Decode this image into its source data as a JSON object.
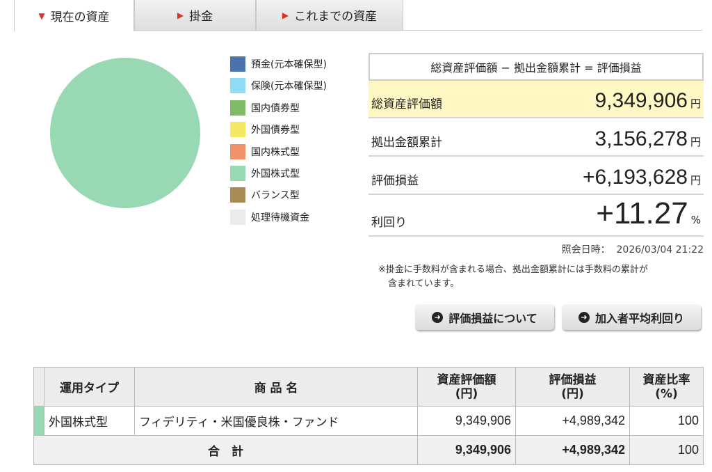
{
  "tabs": [
    {
      "label": "現在の資産",
      "active": true
    },
    {
      "label": "掛金",
      "active": false
    },
    {
      "label": "これまでの資産",
      "active": false
    }
  ],
  "colors": {
    "accent": "#d9302a",
    "highlight": "#fff8c4"
  },
  "chart_data": {
    "type": "pie",
    "slices": [
      {
        "name": "外国株式型",
        "value": 100,
        "color": "#98d9b4"
      }
    ]
  },
  "legend": [
    {
      "label": "預金(元本確保型)",
      "color": "#4a72ad"
    },
    {
      "label": "保険(元本確保型)",
      "color": "#8fdcf6"
    },
    {
      "label": "国内債券型",
      "color": "#7dbb66"
    },
    {
      "label": "外国債券型",
      "color": "#f5e663"
    },
    {
      "label": "国内株式型",
      "color": "#f2906a"
    },
    {
      "label": "外国株式型",
      "color": "#98d9b4"
    },
    {
      "label": "バランス型",
      "color": "#a98c55"
    },
    {
      "label": "処理待機資金",
      "color": "#ebebeb"
    }
  ],
  "summary": {
    "header": "総資産評価額 − 拠出金額累計 = 評価損益",
    "rows": [
      {
        "label": "総資産評価額",
        "value": "9,349,906",
        "unit": "円"
      },
      {
        "label": "拠出金額累計",
        "value": "3,156,278",
        "unit": "円"
      },
      {
        "label": "評価損益",
        "value": "+6,193,628",
        "unit": "円"
      },
      {
        "label": "利回り",
        "value": "+11.27",
        "unit": "%"
      }
    ],
    "timestamp_label": "照会日時：",
    "timestamp": "2026/03/04 21:22",
    "note_line1": "※掛金に手数料が含まれる場合、拠出金額累計には手数料の累計が",
    "note_line2": "含まれています。"
  },
  "buttons": {
    "about": "評価損益について",
    "average": "加入者平均利回り"
  },
  "table": {
    "headers": [
      "運用タイプ",
      "商 品 名",
      "資産評価額\n(円)",
      "評価損益\n(円)",
      "資産比率\n(%)"
    ],
    "rows": [
      {
        "type": "外国株式型",
        "name": "フィデリティ・米国優良株・ファンド",
        "value": "9,349,906",
        "gain": "+4,989,342",
        "ratio": "100",
        "color": "#98d9b4"
      }
    ],
    "total": {
      "label": "合　計",
      "value": "9,349,906",
      "gain": "+4,989,342",
      "ratio": "100"
    }
  }
}
